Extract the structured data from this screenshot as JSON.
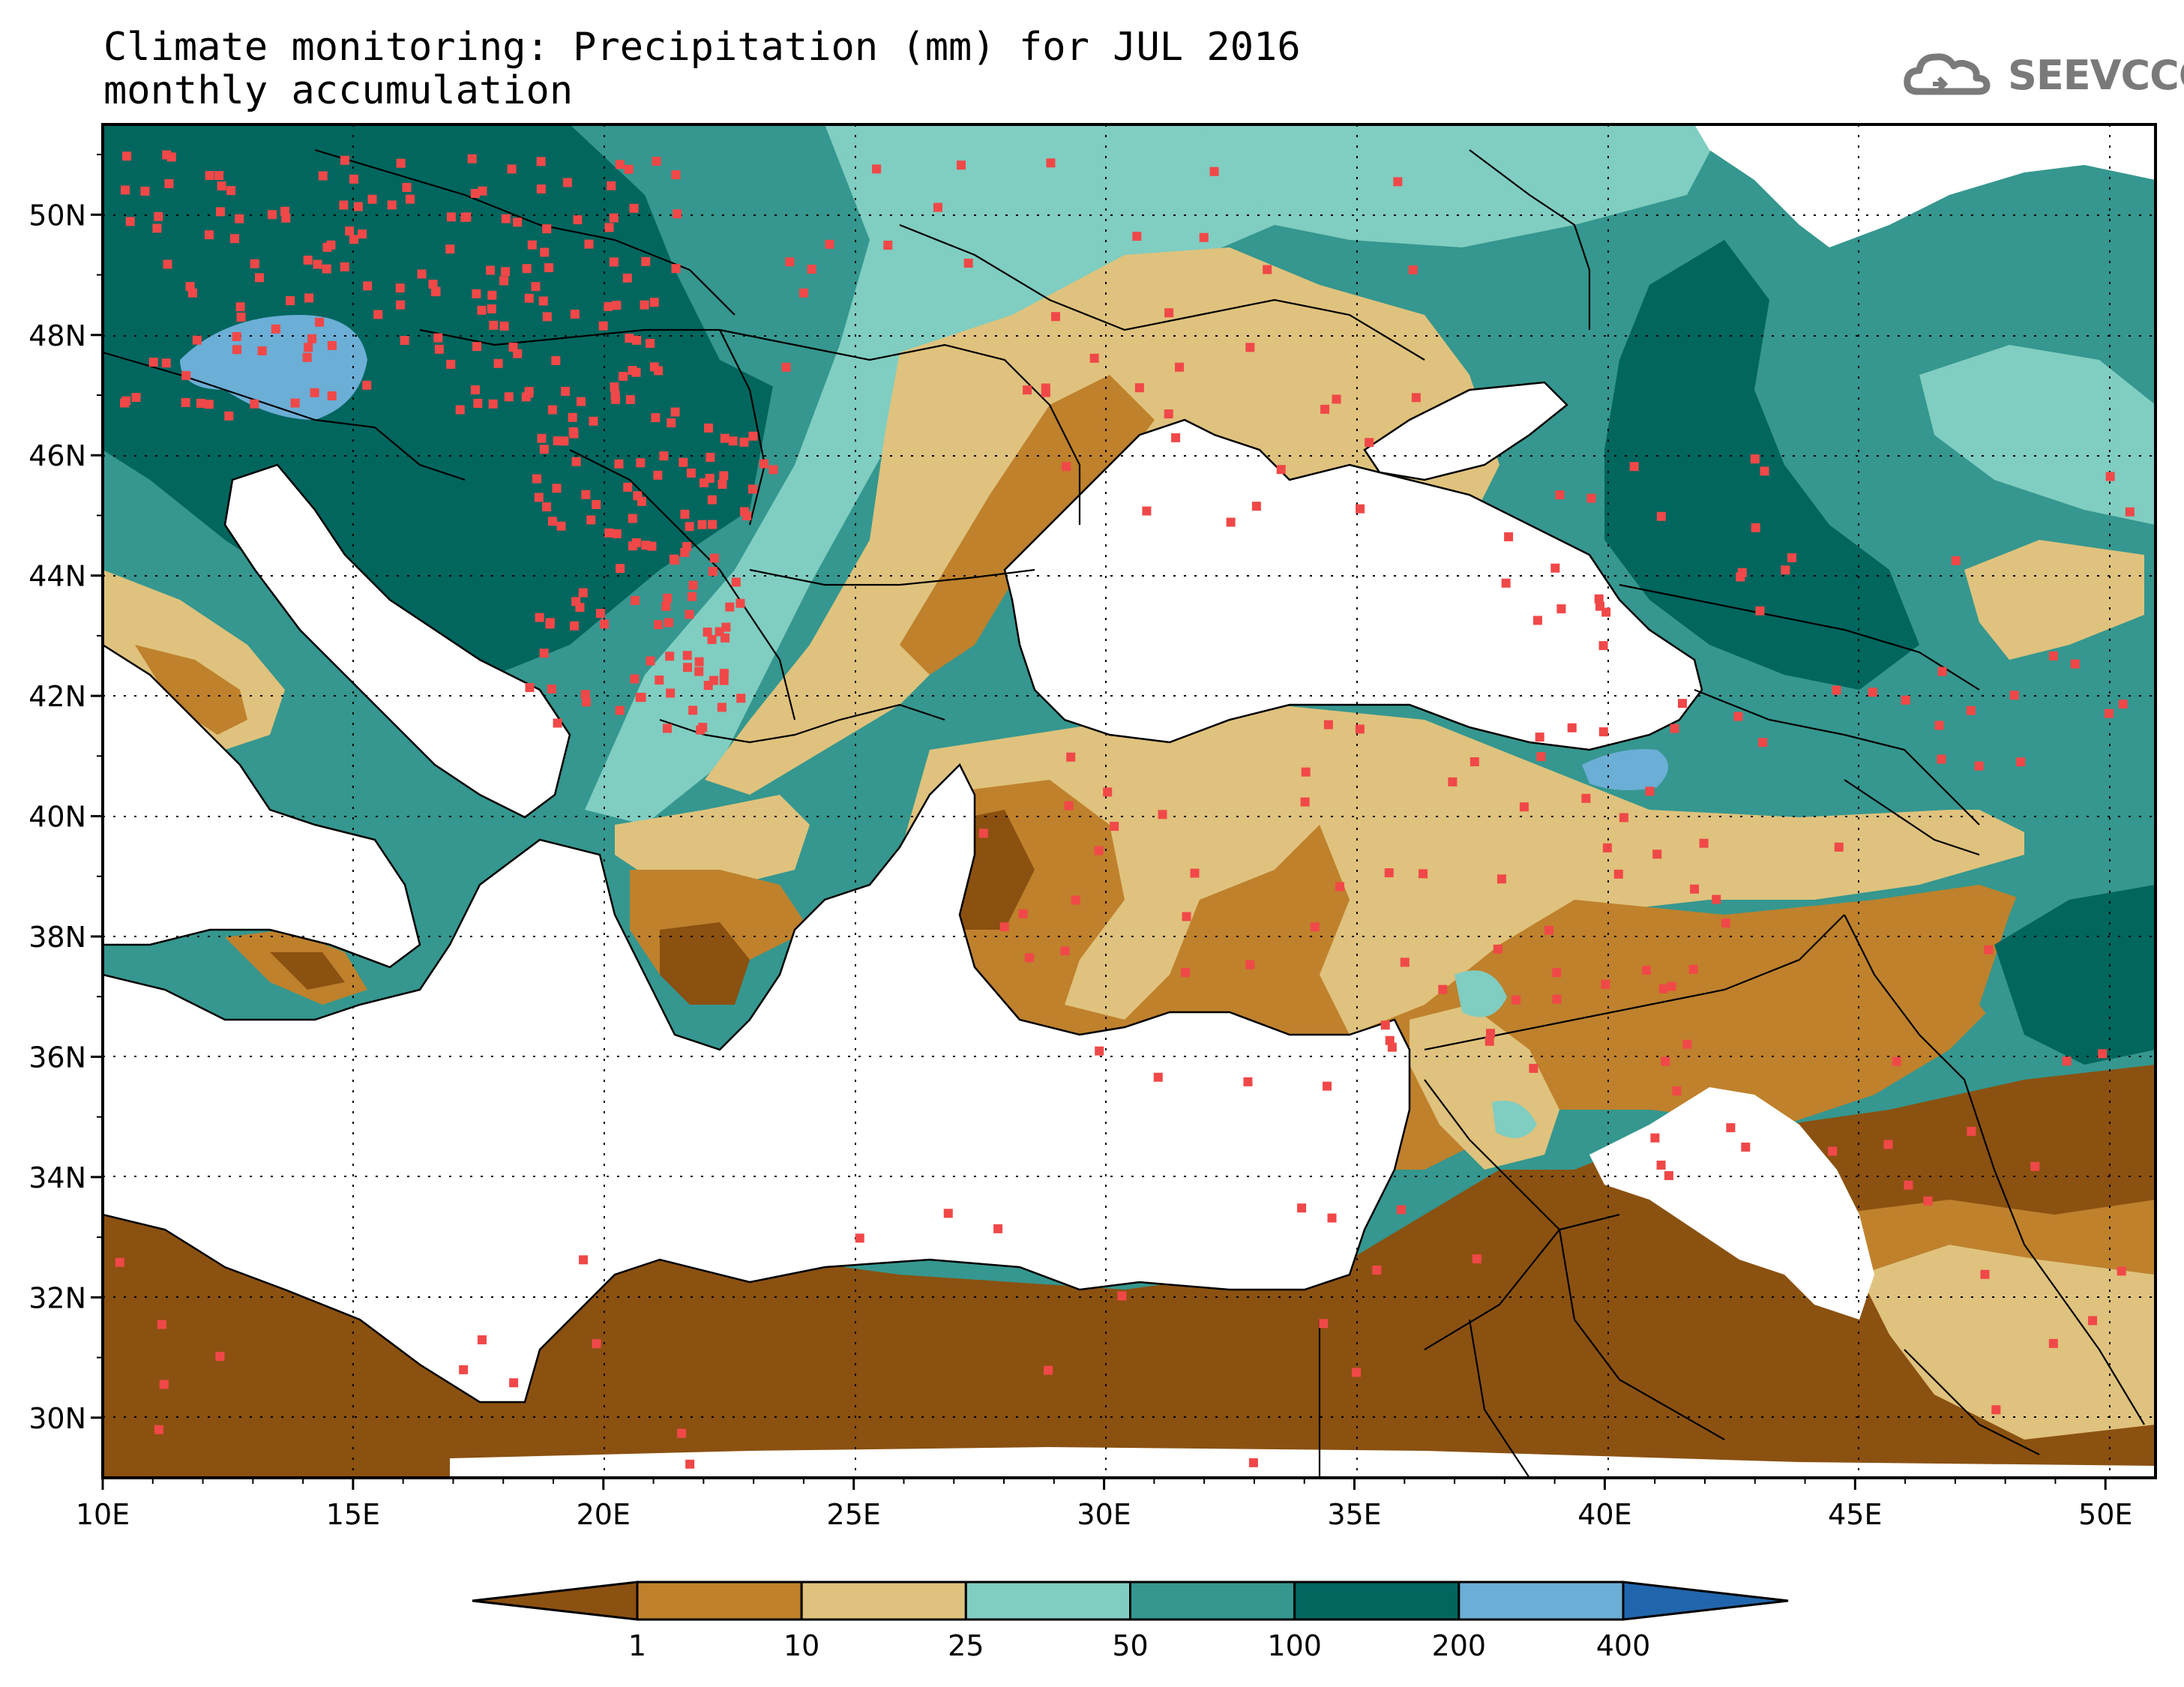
{
  "header": {
    "title": "Climate monitoring: Precipitation (mm) for JUL 2016",
    "subtitle": "monthly accumulation"
  },
  "logo": {
    "text": "SEEVCCC",
    "icon": "cloud-icon",
    "color": "#7a7a7a"
  },
  "axes": {
    "lon_ticks": [
      "10E",
      "15E",
      "20E",
      "25E",
      "30E",
      "35E",
      "40E",
      "45E",
      "50E"
    ],
    "lat_ticks": [
      "50N",
      "48N",
      "46N",
      "44N",
      "42N",
      "40N",
      "38N",
      "36N",
      "34N",
      "32N",
      "30N"
    ]
  },
  "legend": {
    "labels": [
      "1",
      "10",
      "25",
      "50",
      "100",
      "200",
      "400"
    ],
    "colors": [
      "#8B5111",
      "#BF812C",
      "#DFC27D",
      "#80CDC1",
      "#35978F",
      "#01665E",
      "#6BAED6",
      "#2166AC"
    ]
  },
  "map_colors": {
    "land_no_data": "#ffffff",
    "sea": "#ffffff",
    "station": "#F04848"
  }
}
